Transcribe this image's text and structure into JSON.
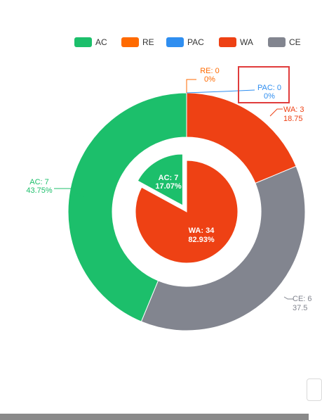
{
  "chart_data": {
    "type": "pie",
    "legend": [
      {
        "name": "AC",
        "color": "#1cbf6b"
      },
      {
        "name": "RE",
        "color": "#ff6a00"
      },
      {
        "name": "PAC",
        "color": "#2f8ef0"
      },
      {
        "name": "WA",
        "color": "#ee4114"
      },
      {
        "name": "CE",
        "color": "#82858f"
      }
    ],
    "outer": [
      {
        "name": "AC",
        "value": 7,
        "percent": "43.75%",
        "label_line1": "AC: 7",
        "label_line2": "43.75%",
        "color": "#1cbf6b"
      },
      {
        "name": "RE",
        "value": 0,
        "percent": "0%",
        "label_line1": "RE: 0",
        "label_line2": "0%",
        "color": "#ff6a00"
      },
      {
        "name": "PAC",
        "value": 0,
        "percent": "0%",
        "label_line1": "PAC: 0",
        "label_line2": "0%",
        "color": "#2f8ef0"
      },
      {
        "name": "WA",
        "value": 3,
        "percent": "18.75%",
        "label_line1": "WA: 3",
        "label_line2": "18.75",
        "color": "#ee4114"
      },
      {
        "name": "CE",
        "value": 6,
        "percent": "37.5%",
        "label_line1": "CE: 6",
        "label_line2": "37.5",
        "color": "#82858f"
      }
    ],
    "inner": [
      {
        "name": "AC",
        "value": 7,
        "percent": "17.07%",
        "label_line1": "AC: 7",
        "label_line2": "17.07%",
        "color": "#1cbf6b"
      },
      {
        "name": "WA",
        "value": 34,
        "percent": "82.93%",
        "label_line1": "WA: 34",
        "label_line2": "82.93%",
        "color": "#ee4114"
      }
    ],
    "highlight": "PAC",
    "highlight_color": "#e03c3c"
  }
}
